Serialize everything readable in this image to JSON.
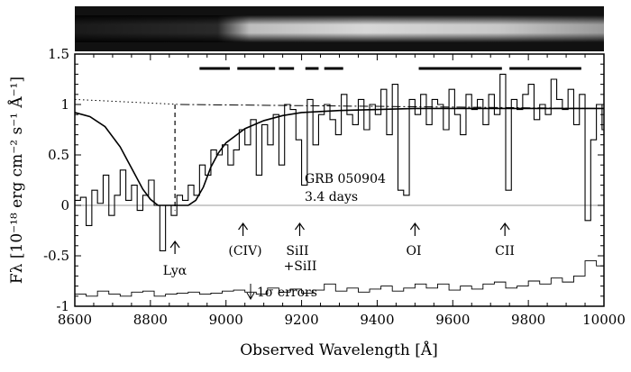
{
  "chart_data": {
    "type": "line",
    "xlabel": "Observed Wavelength [Å]",
    "ylabel": "Fλ [10⁻¹⁸ erg cm⁻² s⁻¹ Å⁻¹]",
    "xlim": [
      8600,
      10000
    ],
    "ylim": [
      -1.0,
      1.5
    ],
    "x_ticks": [
      "8600",
      "8800",
      "9000",
      "9200",
      "9400",
      "9600",
      "9800",
      "10000"
    ],
    "y_ticks": [
      "-1",
      "-0.5",
      "0",
      "0.5",
      "1",
      "1.5"
    ],
    "grid": false,
    "annotations": {
      "grb_name": "GRB 050904",
      "days": "3.4 days",
      "lya": "Lyα",
      "civ": "(CIV)",
      "sii": "SiII",
      "sii2": "+SiII",
      "oi": "OI",
      "cii": "CII",
      "errors": "1σ errors"
    },
    "line_markers": [
      {
        "label": "Lyα",
        "x": 8865
      },
      {
        "label": "(CIV)",
        "x": 9045
      },
      {
        "label": "SiII +SiII",
        "x": 9195
      },
      {
        "label": "OI",
        "x": 9500
      },
      {
        "label": "CII",
        "x": 9738
      }
    ],
    "lya_wavelength": 8865,
    "telluric_bands": [
      [
        8930,
        9010
      ],
      [
        9030,
        9130
      ],
      [
        9140,
        9180
      ],
      [
        9210,
        9245
      ],
      [
        9260,
        9310
      ],
      [
        9510,
        9730
      ],
      [
        9750,
        9940
      ]
    ],
    "series": [
      {
        "style": "histogram",
        "x": [
          8600,
          8615,
          8630,
          8645,
          8660,
          8675,
          8690,
          8705,
          8720,
          8735,
          8750,
          8765,
          8780,
          8795,
          8810,
          8825,
          8840,
          8855,
          8870,
          8885,
          8900,
          8915,
          8930,
          8945,
          8960,
          8975,
          8990,
          9005,
          9020,
          9035,
          9050,
          9065,
          9080,
          9095,
          9110,
          9125,
          9140,
          9155,
          9170,
          9185,
          9200,
          9215,
          9230,
          9245,
          9260,
          9275,
          9290,
          9305,
          9320,
          9335,
          9350,
          9365,
          9380,
          9395,
          9410,
          9425,
          9440,
          9455,
          9470,
          9485,
          9500,
          9515,
          9530,
          9545,
          9560,
          9575,
          9590,
          9605,
          9620,
          9635,
          9650,
          9665,
          9680,
          9695,
          9710,
          9725,
          9740,
          9755,
          9770,
          9785,
          9800,
          9815,
          9830,
          9845,
          9860,
          9875,
          9890,
          9905,
          9920,
          9935,
          9950,
          9965,
          9980,
          9995
        ],
        "values": [
          0.05,
          0.08,
          -0.2,
          0.15,
          0.02,
          0.3,
          -0.1,
          0.1,
          0.35,
          0.05,
          0.2,
          -0.05,
          0.1,
          0.25,
          0.0,
          -0.45,
          0.0,
          -0.1,
          0.1,
          0.05,
          0.2,
          0.1,
          0.4,
          0.3,
          0.55,
          0.5,
          0.6,
          0.4,
          0.55,
          0.75,
          0.6,
          0.85,
          0.3,
          0.8,
          0.6,
          0.9,
          0.4,
          1.0,
          0.95,
          0.65,
          0.2,
          1.05,
          0.6,
          0.9,
          1.0,
          0.85,
          0.7,
          1.1,
          0.9,
          0.8,
          1.05,
          0.75,
          1.0,
          0.9,
          1.15,
          0.7,
          1.2,
          0.15,
          0.1,
          1.05,
          0.9,
          1.1,
          0.8,
          1.05,
          1.0,
          0.75,
          1.15,
          0.9,
          0.7,
          1.1,
          0.95,
          1.05,
          0.8,
          1.1,
          0.9,
          1.3,
          0.15,
          1.05,
          0.95,
          1.1,
          1.2,
          0.85,
          1.0,
          0.9,
          1.25,
          1.05,
          0.95,
          1.15,
          0.8,
          1.1,
          -0.15,
          0.65,
          1.0,
          0.75
        ]
      },
      {
        "style": "smooth-model",
        "x": [
          8600,
          8640,
          8680,
          8720,
          8740,
          8760,
          8780,
          8800,
          8820,
          8840,
          8860,
          8880,
          8900,
          8920,
          8940,
          8960,
          8980,
          9000,
          9050,
          9100,
          9150,
          9200,
          9300,
          9400,
          9500,
          9700,
          10000
        ],
        "values": [
          0.92,
          0.88,
          0.78,
          0.58,
          0.44,
          0.3,
          0.16,
          0.06,
          0.0,
          0.0,
          0.0,
          0.0,
          0.0,
          0.05,
          0.18,
          0.38,
          0.52,
          0.62,
          0.76,
          0.84,
          0.89,
          0.92,
          0.94,
          0.95,
          0.96,
          0.96,
          0.96
        ]
      },
      {
        "style": "dotted-continuum",
        "x": [
          8600,
          8880
        ],
        "values": [
          1.05,
          1.0
        ]
      },
      {
        "style": "dashdot-continuum",
        "x": [
          8880,
          10000
        ],
        "values": [
          1.0,
          0.96
        ]
      },
      {
        "style": "error-histogram",
        "x": [
          8600,
          8630,
          8660,
          8690,
          8720,
          8750,
          8780,
          8810,
          8840,
          8870,
          8900,
          8930,
          8960,
          8990,
          9020,
          9050,
          9080,
          9110,
          9140,
          9170,
          9200,
          9230,
          9260,
          9290,
          9320,
          9350,
          9380,
          9410,
          9440,
          9470,
          9500,
          9530,
          9560,
          9590,
          9620,
          9650,
          9680,
          9710,
          9740,
          9770,
          9800,
          9830,
          9860,
          9890,
          9920,
          9950,
          9980
        ],
        "values": [
          -0.88,
          -0.9,
          -0.85,
          -0.88,
          -0.9,
          -0.86,
          -0.85,
          -0.9,
          -0.88,
          -0.87,
          -0.86,
          -0.88,
          -0.87,
          -0.85,
          -0.84,
          -0.86,
          -0.88,
          -0.82,
          -0.86,
          -0.83,
          -0.87,
          -0.84,
          -0.78,
          -0.85,
          -0.82,
          -0.86,
          -0.83,
          -0.8,
          -0.85,
          -0.82,
          -0.78,
          -0.82,
          -0.78,
          -0.84,
          -0.8,
          -0.83,
          -0.78,
          -0.76,
          -0.82,
          -0.8,
          -0.75,
          -0.78,
          -0.72,
          -0.76,
          -0.7,
          -0.55,
          -0.6
        ]
      }
    ]
  }
}
